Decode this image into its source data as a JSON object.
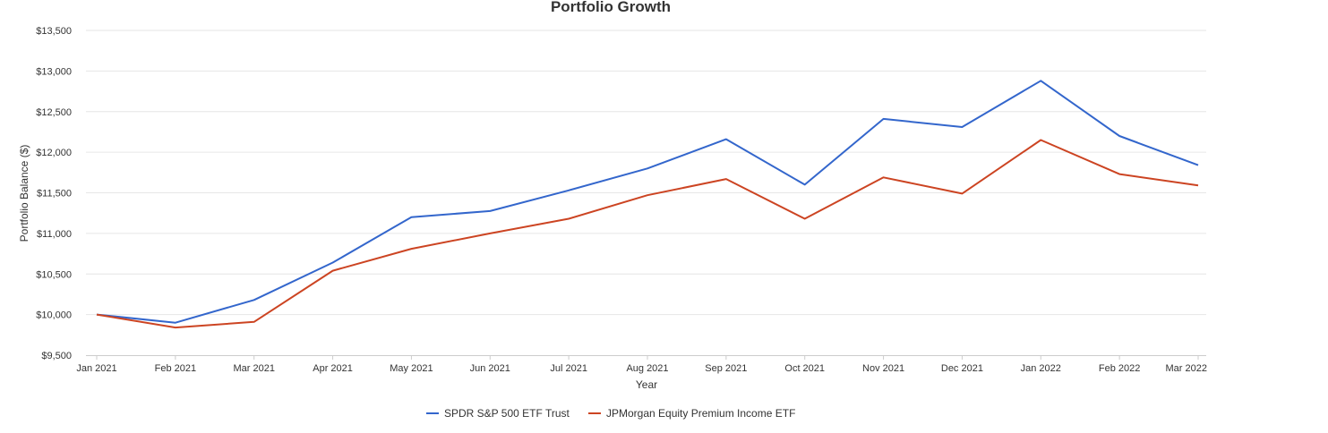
{
  "chart_data": {
    "type": "line",
    "title": "Portfolio Growth",
    "xlabel": "Year",
    "ylabel": "Portfolio Balance ($)",
    "categories": [
      "Jan 2021",
      "Feb 2021",
      "Mar 2021",
      "Apr 2021",
      "May 2021",
      "Jun 2021",
      "Jul 2021",
      "Aug 2021",
      "Sep 2021",
      "Oct 2021",
      "Nov 2021",
      "Dec 2021",
      "Jan 2022",
      "Feb 2022",
      "Mar 2022"
    ],
    "ylim": [
      9500,
      13500
    ],
    "yticks": [
      9500,
      10000,
      10500,
      11000,
      11500,
      12000,
      12500,
      13000,
      13500
    ],
    "ytick_labels": [
      "$9,500",
      "$10,000",
      "$10,500",
      "$11,000",
      "$11,500",
      "$12,000",
      "$12,500",
      "$13,000",
      "$13,500"
    ],
    "grid": true,
    "legend_position": "bottom",
    "series": [
      {
        "name": "SPDR S&P 500 ETF Trust",
        "color": "#3366cc",
        "values": [
          10000,
          9900,
          10180,
          10640,
          11200,
          11275,
          11530,
          11800,
          12160,
          11600,
          12410,
          12310,
          12880,
          12200,
          11840
        ]
      },
      {
        "name": "JPMorgan Equity Premium Income ETF",
        "color": "#cc4422",
        "values": [
          10000,
          9840,
          9910,
          10540,
          10810,
          11000,
          11180,
          11470,
          11670,
          11180,
          11690,
          11490,
          12150,
          11730,
          11590
        ]
      }
    ]
  }
}
